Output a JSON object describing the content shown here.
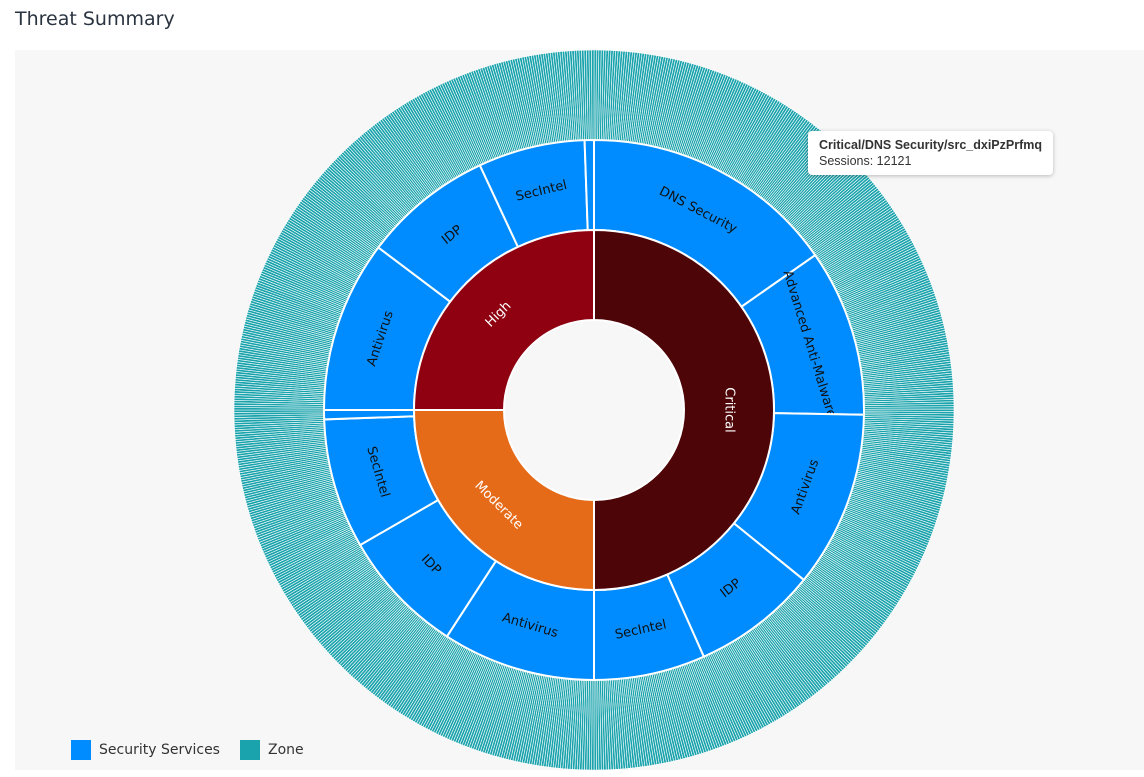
{
  "title": "Threat Summary",
  "chart_data": {
    "type": "sunburst",
    "title": "Threat Summary",
    "legend": [
      {
        "label": "Security Services",
        "color": "#008cff"
      },
      {
        "label": "Zone",
        "color": "#1aa3ac"
      }
    ],
    "colors": {
      "Critical": "#4e0508",
      "High": "#8f0010",
      "Moderate": "#e66b19",
      "service": "#008cff",
      "zone": "#1aa3ac"
    },
    "severities": [
      {
        "name": "Critical",
        "services": [
          {
            "name": "DNS Security",
            "value": 55
          },
          {
            "name": "Advanced Anti-Malware",
            "value": 36
          },
          {
            "name": "Antivirus",
            "value": 38
          },
          {
            "name": "IDP",
            "value": 27
          },
          {
            "name": "SecIntel",
            "value": 24
          }
        ]
      },
      {
        "name": "Moderate",
        "services": [
          {
            "name": "Antivirus",
            "value": 33
          },
          {
            "name": "IDP",
            "value": 27
          },
          {
            "name": "SecIntel",
            "value": 28
          },
          {
            "name": "",
            "value": 2
          }
        ]
      },
      {
        "name": "High",
        "services": [
          {
            "name": "Antivirus",
            "value": 37
          },
          {
            "name": "IDP",
            "value": 28
          },
          {
            "name": "SecIntel",
            "value": 23
          },
          {
            "name": "",
            "value": 2
          }
        ]
      }
    ],
    "tooltip": {
      "title": "Critical/DNS Security/src_dxiPzPrfmq",
      "label": "Sessions: 12121"
    }
  }
}
